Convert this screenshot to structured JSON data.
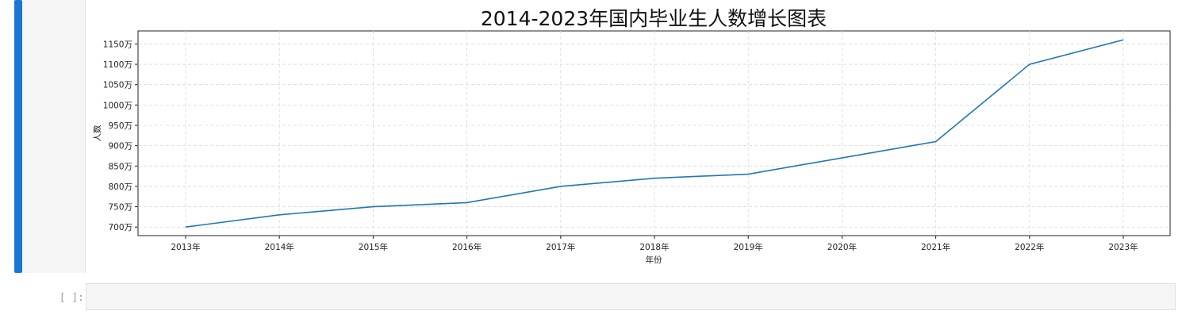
{
  "cell": {
    "input_prompt": "[ ]:",
    "input_value": ""
  },
  "colors": {
    "cell_active_bar": "#1976d2",
    "line": "#1f77b4"
  },
  "chart_data": {
    "type": "line",
    "title": "2014-2023年国内毕业生人数增长图表",
    "xlabel": "年份",
    "ylabel": "人数",
    "categories": [
      "2013年",
      "2014年",
      "2015年",
      "2016年",
      "2017年",
      "2018年",
      "2019年",
      "2020年",
      "2021年",
      "2022年",
      "2023年"
    ],
    "series": [
      {
        "values": [
          700,
          730,
          750,
          760,
          800,
          820,
          830,
          870,
          910,
          1100,
          1160
        ]
      }
    ],
    "yticks": [
      700,
      750,
      800,
      850,
      900,
      950,
      1000,
      1050,
      1100,
      1150
    ],
    "ytick_labels": [
      "700万",
      "750万",
      "800万",
      "850万",
      "900万",
      "950万",
      "1000万",
      "1050万",
      "1100万",
      "1150万"
    ],
    "ylim": [
      679,
      1182
    ],
    "grid": true
  }
}
